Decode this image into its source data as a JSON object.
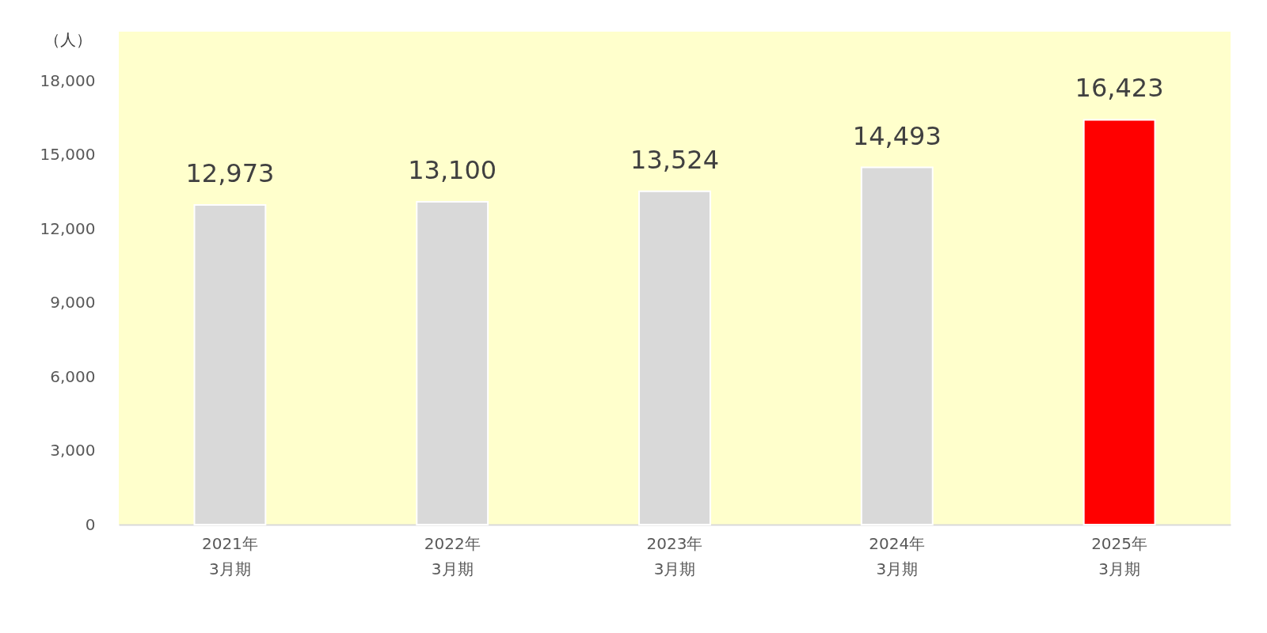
{
  "chart_data": {
    "type": "bar",
    "ylabel": "（人）",
    "categories": [
      "2021年\n3月期",
      "2022年\n3月期",
      "2023年\n3月期",
      "2024年\n3月期",
      "2025年\n3月期"
    ],
    "values": [
      12973,
      13100,
      13524,
      14493,
      16423
    ],
    "colors": [
      "#d9d9d9",
      "#d9d9d9",
      "#d9d9d9",
      "#d9d9d9",
      "#ff0000"
    ],
    "value_labels": [
      "12,973",
      "13,100",
      "13,524",
      "14,493",
      "16,423"
    ],
    "ylim": [
      0,
      20000
    ],
    "yticks": [
      {
        "value": 0,
        "label": "0"
      },
      {
        "value": 3000,
        "label": "3,000"
      },
      {
        "value": 6000,
        "label": "6,000"
      },
      {
        "value": 9000,
        "label": "9,000"
      },
      {
        "value": 12000,
        "label": "12,000"
      },
      {
        "value": 15000,
        "label": "15,000"
      },
      {
        "value": 18000,
        "label": "18,000"
      }
    ],
    "grid": false
  }
}
